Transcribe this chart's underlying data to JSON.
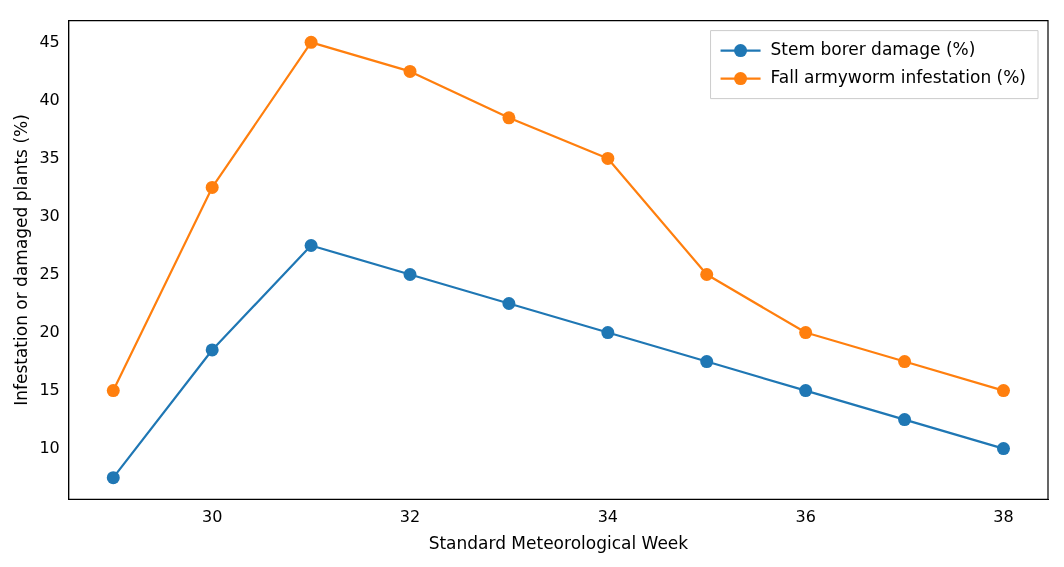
{
  "chart_data": {
    "type": "line",
    "xlabel": "Standard Meteorological Week",
    "ylabel": "Infestation or damaged plants (%)",
    "x": [
      29,
      30,
      31,
      32,
      33,
      34,
      35,
      36,
      37,
      38
    ],
    "series": [
      {
        "name": "Stem borer damage (%)",
        "color": "#1f77b4",
        "values": [
          7.5,
          18.5,
          27.5,
          25,
          22.5,
          20,
          17.5,
          15,
          12.5,
          10
        ]
      },
      {
        "name": "Fall armyworm infestation (%)",
        "color": "#ff7f0e",
        "values": [
          15,
          32.5,
          45,
          42.5,
          38.5,
          35,
          25,
          20,
          17.5,
          15
        ]
      }
    ],
    "xlim": [
      28.55,
      38.45
    ],
    "xticks": [
      30,
      32,
      34,
      36,
      38
    ],
    "ylim": [
      5.625,
      46.875
    ],
    "yticks": [
      10,
      15,
      20,
      25,
      30,
      35,
      40,
      45
    ],
    "grid": false,
    "legend": "top right",
    "marker": "circle",
    "line_style": "solid"
  }
}
